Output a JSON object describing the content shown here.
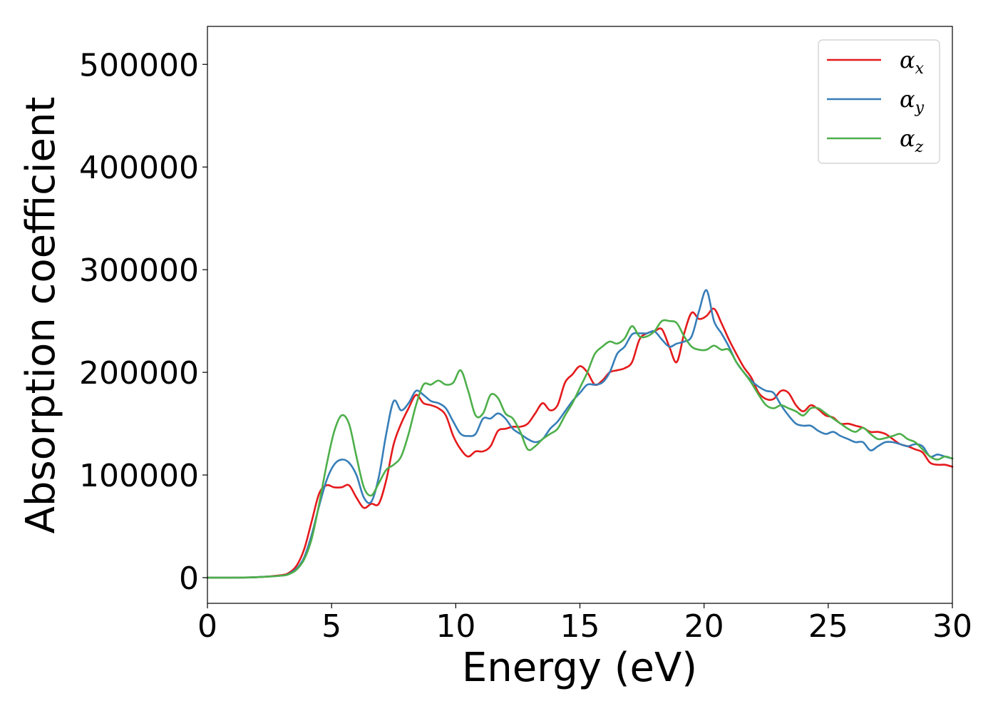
{
  "chart_data": {
    "type": "line",
    "title": "",
    "xlabel": "Energy (eV)",
    "ylabel": "Absorption coefficient",
    "xlim": [
      0,
      30
    ],
    "ylim": [
      -25000,
      537000
    ],
    "xticks": [
      0,
      5,
      10,
      15,
      20,
      25,
      30
    ],
    "yticks": [
      0,
      100000,
      200000,
      300000,
      400000,
      500000
    ],
    "xtick_labels": [
      "0",
      "5",
      "10",
      "15",
      "20",
      "25",
      "30"
    ],
    "ytick_labels": [
      "0",
      "100000",
      "200000",
      "300000",
      "400000",
      "500000"
    ],
    "grid": false,
    "legend_position": "top-right",
    "series": [
      {
        "name": "α_x",
        "symbol": "α",
        "subscript": "x",
        "color": "#e41a1c",
        "x": [
          0,
          1,
          2,
          3,
          3.3,
          3.6,
          3.9,
          4.2,
          4.5,
          4.8,
          5.1,
          5.4,
          5.7,
          6.0,
          6.3,
          6.6,
          6.9,
          7.2,
          7.5,
          7.8,
          8.1,
          8.4,
          8.7,
          9.0,
          9.3,
          9.6,
          9.9,
          10.2,
          10.5,
          10.8,
          11.1,
          11.4,
          11.7,
          12.0,
          12.3,
          12.6,
          12.9,
          13.2,
          13.5,
          13.8,
          14.1,
          14.4,
          14.7,
          15.0,
          15.3,
          15.6,
          15.9,
          16.2,
          16.5,
          16.8,
          17.1,
          17.4,
          17.7,
          18.0,
          18.3,
          18.6,
          18.9,
          19.2,
          19.5,
          19.8,
          20.1,
          20.4,
          20.7,
          21.0,
          21.3,
          21.6,
          21.9,
          22.2,
          22.5,
          22.8,
          23.1,
          23.4,
          23.7,
          24.0,
          24.3,
          24.6,
          24.9,
          25.2,
          25.5,
          25.8,
          26.1,
          26.4,
          26.7,
          27.0,
          27.3,
          27.6,
          27.9,
          28.2,
          28.5,
          28.8,
          29.1,
          29.4,
          29.7,
          30.0
        ],
        "values": [
          0,
          0,
          500,
          2500,
          5000,
          12000,
          28000,
          55000,
          82000,
          90000,
          88000,
          88000,
          90000,
          78000,
          68000,
          72000,
          72000,
          95000,
          130000,
          150000,
          165000,
          178000,
          170000,
          168000,
          165000,
          158000,
          138000,
          125000,
          118000,
          123000,
          123000,
          128000,
          143000,
          145000,
          147000,
          147000,
          150000,
          160000,
          170000,
          163000,
          168000,
          190000,
          198000,
          206000,
          200000,
          188000,
          192000,
          200000,
          202000,
          204000,
          210000,
          232000,
          238000,
          240000,
          242000,
          225000,
          210000,
          238000,
          258000,
          252000,
          255000,
          262000,
          248000,
          232000,
          218000,
          205000,
          195000,
          180000,
          174000,
          174000,
          182000,
          180000,
          168000,
          162000,
          168000,
          164000,
          158000,
          156000,
          150000,
          150000,
          148000,
          146000,
          142000,
          142000,
          140000,
          135000,
          130000,
          128000,
          125000,
          122000,
          112000,
          110000,
          110000,
          108000
        ]
      },
      {
        "name": "α_y",
        "symbol": "α",
        "subscript": "y",
        "color": "#377eb8",
        "x": [
          0,
          1,
          2,
          3,
          3.3,
          3.6,
          3.9,
          4.2,
          4.5,
          4.8,
          5.1,
          5.4,
          5.7,
          6.0,
          6.3,
          6.6,
          6.9,
          7.2,
          7.5,
          7.8,
          8.1,
          8.4,
          8.7,
          9.0,
          9.3,
          9.6,
          9.9,
          10.2,
          10.5,
          10.8,
          11.1,
          11.4,
          11.7,
          12.0,
          12.3,
          12.6,
          12.9,
          13.2,
          13.5,
          13.8,
          14.1,
          14.4,
          14.7,
          15.0,
          15.3,
          15.6,
          15.9,
          16.2,
          16.5,
          16.8,
          17.1,
          17.4,
          17.7,
          18.0,
          18.3,
          18.6,
          18.9,
          19.2,
          19.5,
          19.8,
          20.1,
          20.4,
          20.7,
          21.0,
          21.3,
          21.6,
          21.9,
          22.2,
          22.5,
          22.8,
          23.1,
          23.4,
          23.7,
          24.0,
          24.3,
          24.6,
          24.9,
          25.2,
          25.5,
          25.8,
          26.1,
          26.4,
          26.7,
          27.0,
          27.3,
          27.6,
          27.9,
          28.2,
          28.5,
          28.8,
          29.1,
          29.4,
          29.7,
          30.0
        ],
        "values": [
          0,
          0,
          500,
          2000,
          4000,
          9000,
          20000,
          42000,
          70000,
          95000,
          110000,
          115000,
          112000,
          100000,
          78000,
          74000,
          98000,
          140000,
          172000,
          163000,
          170000,
          182000,
          178000,
          172000,
          170000,
          165000,
          152000,
          140000,
          138000,
          140000,
          155000,
          155000,
          160000,
          155000,
          145000,
          140000,
          135000,
          132000,
          135000,
          145000,
          152000,
          162000,
          172000,
          180000,
          188000,
          188000,
          190000,
          200000,
          218000,
          225000,
          237000,
          238000,
          238000,
          240000,
          232000,
          225000,
          228000,
          230000,
          235000,
          260000,
          280000,
          250000,
          238000,
          225000,
          210000,
          200000,
          192000,
          186000,
          182000,
          180000,
          168000,
          158000,
          150000,
          148000,
          148000,
          143000,
          140000,
          142000,
          138000,
          135000,
          132000,
          132000,
          124000,
          128000,
          132000,
          132000,
          130000,
          128000,
          130000,
          128000,
          118000,
          120000,
          118000,
          116000
        ]
      },
      {
        "name": "α_z",
        "symbol": "α",
        "subscript": "z",
        "color": "#4daf4a",
        "x": [
          0,
          1,
          2,
          3,
          3.3,
          3.6,
          3.9,
          4.2,
          4.5,
          4.8,
          5.1,
          5.4,
          5.7,
          6.0,
          6.3,
          6.6,
          6.9,
          7.2,
          7.5,
          7.8,
          8.1,
          8.4,
          8.7,
          9.0,
          9.3,
          9.6,
          9.9,
          10.2,
          10.5,
          10.8,
          11.1,
          11.4,
          11.7,
          12.0,
          12.3,
          12.6,
          12.9,
          13.2,
          13.5,
          13.8,
          14.1,
          14.4,
          14.7,
          15.0,
          15.3,
          15.6,
          15.9,
          16.2,
          16.5,
          16.8,
          17.1,
          17.4,
          17.7,
          18.0,
          18.3,
          18.6,
          18.9,
          19.2,
          19.5,
          19.8,
          20.1,
          20.4,
          20.7,
          21.0,
          21.3,
          21.6,
          21.9,
          22.2,
          22.5,
          22.8,
          23.1,
          23.4,
          23.7,
          24.0,
          24.3,
          24.6,
          24.9,
          25.2,
          25.5,
          25.8,
          26.1,
          26.4,
          26.7,
          27.0,
          27.3,
          27.6,
          27.9,
          28.2,
          28.5,
          28.8,
          29.1,
          29.4,
          29.7,
          30.0
        ],
        "values": [
          0,
          0,
          500,
          2000,
          3500,
          8000,
          18000,
          38000,
          72000,
          110000,
          142000,
          158000,
          150000,
          118000,
          88000,
          80000,
          92000,
          105000,
          110000,
          118000,
          140000,
          168000,
          188000,
          188000,
          192000,
          188000,
          190000,
          202000,
          182000,
          158000,
          160000,
          178000,
          175000,
          160000,
          155000,
          142000,
          125000,
          128000,
          135000,
          140000,
          145000,
          158000,
          170000,
          185000,
          200000,
          218000,
          225000,
          230000,
          228000,
          233000,
          245000,
          235000,
          235000,
          240000,
          250000,
          250000,
          248000,
          235000,
          225000,
          222000,
          222000,
          226000,
          222000,
          222000,
          210000,
          200000,
          190000,
          178000,
          168000,
          165000,
          168000,
          165000,
          162000,
          158000,
          165000,
          165000,
          160000,
          155000,
          150000,
          145000,
          142000,
          146000,
          140000,
          135000,
          136000,
          138000,
          140000,
          135000,
          132000,
          125000,
          118000,
          115000,
          118000,
          116000
        ]
      }
    ]
  }
}
